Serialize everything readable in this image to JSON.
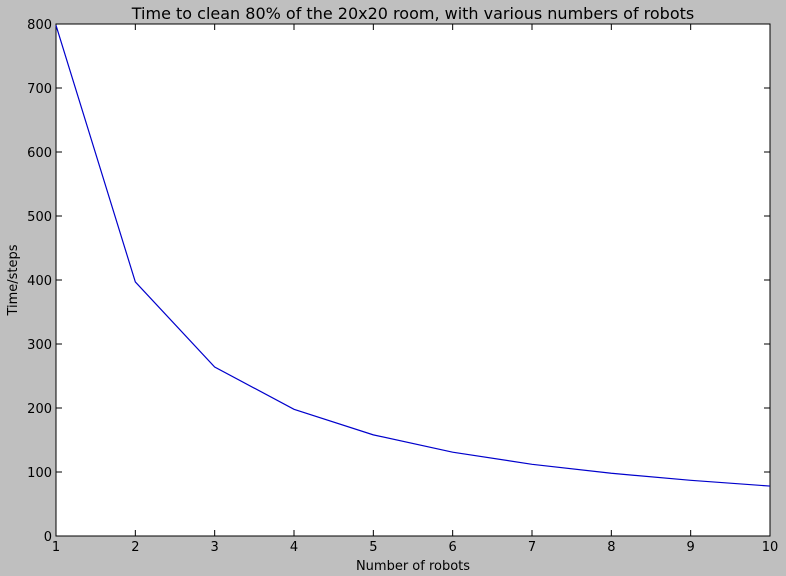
{
  "chart_data": {
    "type": "line",
    "title": "Time to clean 80% of the 20x20 room, with various numbers of robots",
    "xlabel": "Number of robots",
    "ylabel": "Time/steps",
    "xlim": [
      1,
      10
    ],
    "ylim": [
      0,
      800
    ],
    "x_ticks": [
      "1",
      "2",
      "3",
      "4",
      "5",
      "6",
      "7",
      "8",
      "9",
      "10"
    ],
    "y_ticks": [
      "0",
      "100",
      "200",
      "300",
      "400",
      "500",
      "600",
      "700",
      "800"
    ],
    "grid": false,
    "legend": "none",
    "series": [
      {
        "color": "#0000cc",
        "x": [
          1,
          2,
          3,
          4,
          5,
          6,
          7,
          8,
          9,
          10
        ],
        "y": [
          798,
          397,
          264,
          198,
          158,
          131,
          112,
          98,
          87,
          78
        ]
      }
    ]
  },
  "colors": {
    "figure_background": "#bfbfbf",
    "plot_background": "#ffffff",
    "axes": "#000000",
    "line": "#0000cc"
  }
}
